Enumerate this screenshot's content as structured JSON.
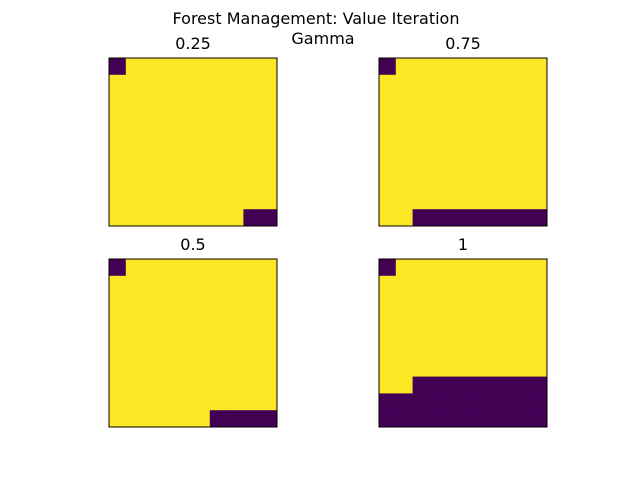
{
  "figure": {
    "title": "Forest Management: Value Iteration",
    "subtitle": "Gamma"
  },
  "colors": {
    "cell_value_1": "#fde725",
    "cell_value_0": "#440154",
    "axes_border": "#000000",
    "background": "#ffffff"
  },
  "chart_data": [
    {
      "type": "heatmap",
      "title": "0.25",
      "grid_size": [
        10,
        10
      ],
      "colormap": "viridis",
      "values": [
        [
          0,
          1,
          1,
          1,
          1,
          1,
          1,
          1,
          1,
          1
        ],
        [
          1,
          1,
          1,
          1,
          1,
          1,
          1,
          1,
          1,
          1
        ],
        [
          1,
          1,
          1,
          1,
          1,
          1,
          1,
          1,
          1,
          1
        ],
        [
          1,
          1,
          1,
          1,
          1,
          1,
          1,
          1,
          1,
          1
        ],
        [
          1,
          1,
          1,
          1,
          1,
          1,
          1,
          1,
          1,
          1
        ],
        [
          1,
          1,
          1,
          1,
          1,
          1,
          1,
          1,
          1,
          1
        ],
        [
          1,
          1,
          1,
          1,
          1,
          1,
          1,
          1,
          1,
          1
        ],
        [
          1,
          1,
          1,
          1,
          1,
          1,
          1,
          1,
          1,
          1
        ],
        [
          1,
          1,
          1,
          1,
          1,
          1,
          1,
          1,
          1,
          1
        ],
        [
          1,
          1,
          1,
          1,
          1,
          1,
          1,
          1,
          0,
          0
        ]
      ]
    },
    {
      "type": "heatmap",
      "title": "0.75",
      "grid_size": [
        10,
        10
      ],
      "colormap": "viridis",
      "values": [
        [
          0,
          1,
          1,
          1,
          1,
          1,
          1,
          1,
          1,
          1
        ],
        [
          1,
          1,
          1,
          1,
          1,
          1,
          1,
          1,
          1,
          1
        ],
        [
          1,
          1,
          1,
          1,
          1,
          1,
          1,
          1,
          1,
          1
        ],
        [
          1,
          1,
          1,
          1,
          1,
          1,
          1,
          1,
          1,
          1
        ],
        [
          1,
          1,
          1,
          1,
          1,
          1,
          1,
          1,
          1,
          1
        ],
        [
          1,
          1,
          1,
          1,
          1,
          1,
          1,
          1,
          1,
          1
        ],
        [
          1,
          1,
          1,
          1,
          1,
          1,
          1,
          1,
          1,
          1
        ],
        [
          1,
          1,
          1,
          1,
          1,
          1,
          1,
          1,
          1,
          1
        ],
        [
          1,
          1,
          1,
          1,
          1,
          1,
          1,
          1,
          1,
          1
        ],
        [
          1,
          1,
          0,
          0,
          0,
          0,
          0,
          0,
          0,
          0
        ]
      ]
    },
    {
      "type": "heatmap",
      "title": "0.5",
      "grid_size": [
        10,
        10
      ],
      "colormap": "viridis",
      "values": [
        [
          0,
          1,
          1,
          1,
          1,
          1,
          1,
          1,
          1,
          1
        ],
        [
          1,
          1,
          1,
          1,
          1,
          1,
          1,
          1,
          1,
          1
        ],
        [
          1,
          1,
          1,
          1,
          1,
          1,
          1,
          1,
          1,
          1
        ],
        [
          1,
          1,
          1,
          1,
          1,
          1,
          1,
          1,
          1,
          1
        ],
        [
          1,
          1,
          1,
          1,
          1,
          1,
          1,
          1,
          1,
          1
        ],
        [
          1,
          1,
          1,
          1,
          1,
          1,
          1,
          1,
          1,
          1
        ],
        [
          1,
          1,
          1,
          1,
          1,
          1,
          1,
          1,
          1,
          1
        ],
        [
          1,
          1,
          1,
          1,
          1,
          1,
          1,
          1,
          1,
          1
        ],
        [
          1,
          1,
          1,
          1,
          1,
          1,
          1,
          1,
          1,
          1
        ],
        [
          1,
          1,
          1,
          1,
          1,
          1,
          0,
          0,
          0,
          0
        ]
      ]
    },
    {
      "type": "heatmap",
      "title": "1",
      "grid_size": [
        10,
        10
      ],
      "colormap": "viridis",
      "values": [
        [
          0,
          1,
          1,
          1,
          1,
          1,
          1,
          1,
          1,
          1
        ],
        [
          1,
          1,
          1,
          1,
          1,
          1,
          1,
          1,
          1,
          1
        ],
        [
          1,
          1,
          1,
          1,
          1,
          1,
          1,
          1,
          1,
          1
        ],
        [
          1,
          1,
          1,
          1,
          1,
          1,
          1,
          1,
          1,
          1
        ],
        [
          1,
          1,
          1,
          1,
          1,
          1,
          1,
          1,
          1,
          1
        ],
        [
          1,
          1,
          1,
          1,
          1,
          1,
          1,
          1,
          1,
          1
        ],
        [
          1,
          1,
          1,
          1,
          1,
          1,
          1,
          1,
          1,
          1
        ],
        [
          1,
          1,
          0,
          0,
          0,
          0,
          0,
          0,
          0,
          0
        ],
        [
          0,
          0,
          0,
          0,
          0,
          0,
          0,
          0,
          0,
          0
        ],
        [
          0,
          0,
          0,
          0,
          0,
          0,
          0,
          0,
          0,
          0
        ]
      ]
    }
  ]
}
